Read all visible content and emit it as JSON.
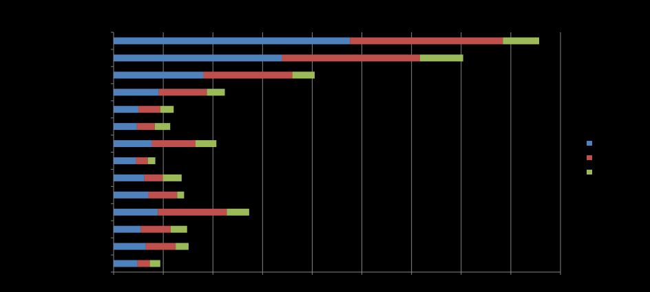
{
  "chart_data": {
    "type": "bar",
    "orientation": "horizontal",
    "stacked": true,
    "background": "#000000",
    "grid": true,
    "legend_position": "right",
    "xlim": [
      0,
      900
    ],
    "categories": [
      "",
      "",
      "",
      "",
      "",
      "",
      "",
      "",
      "",
      "",
      "",
      "",
      "",
      ""
    ],
    "series": [
      {
        "color": "#4F81BD",
        "values": [
          476,
          339,
          181,
          91,
          50,
          47,
          77,
          45,
          62,
          70,
          89,
          55,
          65,
          48
        ]
      },
      {
        "color": "#C0504D",
        "values": [
          308,
          278,
          179,
          97,
          44,
          36,
          88,
          24,
          37,
          58,
          139,
          60,
          60,
          25
        ]
      },
      {
        "color": "#9BBB59",
        "values": [
          73,
          87,
          45,
          36,
          27,
          31,
          42,
          15,
          38,
          14,
          45,
          33,
          26,
          21
        ]
      }
    ],
    "legend": [
      {
        "color": "#4F81BD",
        "label": ""
      },
      {
        "color": "#C0504D",
        "label": ""
      },
      {
        "color": "#9BBB59",
        "label": ""
      }
    ]
  }
}
